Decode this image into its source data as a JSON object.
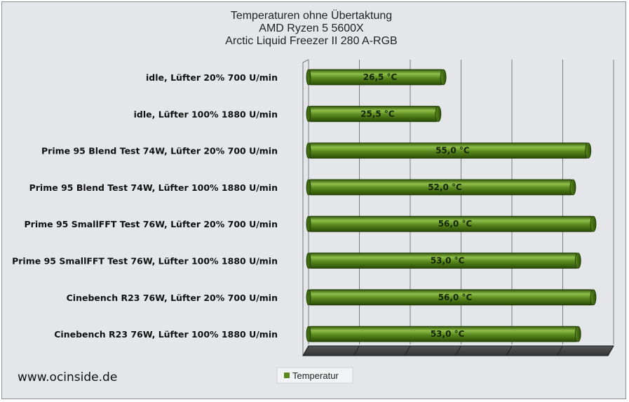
{
  "chart_data": {
    "type": "bar",
    "orientation": "horizontal",
    "title_lines": [
      "Temperaturen ohne Übertaktung",
      "AMD Ryzen 5 5600X",
      "Arctic Liquid Freezer II 280 A-RGB"
    ],
    "categories": [
      "idle, Lüfter 20% 700 U/min",
      "idle, Lüfter 100% 1880 U/min",
      "Prime 95 Blend Test 74W, Lüfter 20% 700 U/min",
      "Prime 95 Blend Test 74W, Lüfter 100% 1880 U/min",
      "Prime 95 SmallFFT Test 76W, Lüfter 20% 700 U/min",
      "Prime 95 SmallFFT Test 76W, Lüfter 100% 1880 U/min",
      "Cinebench R23 76W, Lüfter 20% 700 U/min",
      "Cinebench R23 76W, Lüfter 100% 1880 U/min"
    ],
    "series": [
      {
        "name": "Temperatur",
        "values": [
          26.5,
          25.5,
          55.0,
          52.0,
          56.0,
          53.0,
          56.0,
          53.0
        ],
        "labels": [
          "26,5 °C",
          "25,5 °C",
          "55,0 °C",
          "52,0 °C",
          "56,0 °C",
          "53,0 °C",
          "56,0 °C",
          "53,0 °C"
        ],
        "color": "#5a8a1e"
      }
    ],
    "xlim": [
      0,
      60
    ],
    "grid": true,
    "tick_labels_shown": false,
    "legend_position": "bottom-center",
    "colors": {
      "bar": "#5a8a1e",
      "bar_light": "#8fbf4a",
      "bar_dark": "#2f5208",
      "frame_bg": "#e4e6e9",
      "floor": "#3e3e3e"
    }
  },
  "watermark": "www.ocinside.de"
}
